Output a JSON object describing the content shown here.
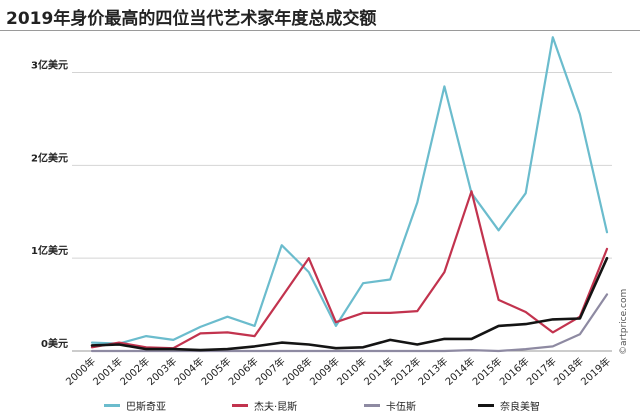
{
  "chart_data": {
    "type": "line",
    "title": "2019年身价最高的四位当代艺术家年度总成交额",
    "source": "©artprice.com",
    "categories": [
      "2000年",
      "2001年",
      "2002年",
      "2003年",
      "2004年",
      "2005年",
      "2006年",
      "2007年",
      "2008年",
      "2009年",
      "2010年",
      "2011年",
      "2012年",
      "2013年",
      "2014年",
      "2015年",
      "2016年",
      "2017年",
      "2018年",
      "2019年"
    ],
    "y_ticks": [
      {
        "value": 0,
        "label": "0美元"
      },
      {
        "value": 1,
        "label": "1亿美元"
      },
      {
        "value": 2,
        "label": "2亿美元"
      },
      {
        "value": 3,
        "label": "3亿美元"
      }
    ],
    "ylim": [
      0,
      3.35
    ],
    "grid": true,
    "legend_position": "bottom",
    "series": [
      {
        "name": "巴斯奇亚",
        "color": "#6bbccd",
        "values": [
          0.09,
          0.08,
          0.16,
          0.12,
          0.26,
          0.37,
          0.27,
          1.14,
          0.85,
          0.27,
          0.73,
          0.77,
          1.6,
          2.85,
          1.7,
          1.3,
          1.7,
          3.38,
          2.55,
          1.28
        ]
      },
      {
        "name": "杰夫·昆斯",
        "color": "#c2334e",
        "values": [
          0.04,
          0.09,
          0.04,
          0.03,
          0.19,
          0.2,
          0.16,
          0.58,
          1.0,
          0.31,
          0.41,
          0.41,
          0.43,
          0.85,
          1.72,
          0.55,
          0.42,
          0.2,
          0.37,
          1.1
        ]
      },
      {
        "name": "卡伍斯",
        "color": "#8e8aa2",
        "values": [
          0,
          0,
          0,
          0,
          0,
          0,
          0,
          0,
          0,
          0,
          0,
          0,
          0,
          0,
          0.01,
          0,
          0.02,
          0.05,
          0.18,
          0.61
        ]
      },
      {
        "name": "奈良美智",
        "color": "#141414",
        "values": [
          0.06,
          0.07,
          0.02,
          0.02,
          0.01,
          0.02,
          0.05,
          0.09,
          0.07,
          0.03,
          0.04,
          0.12,
          0.07,
          0.13,
          0.13,
          0.27,
          0.29,
          0.34,
          0.35,
          1.0
        ]
      }
    ]
  }
}
